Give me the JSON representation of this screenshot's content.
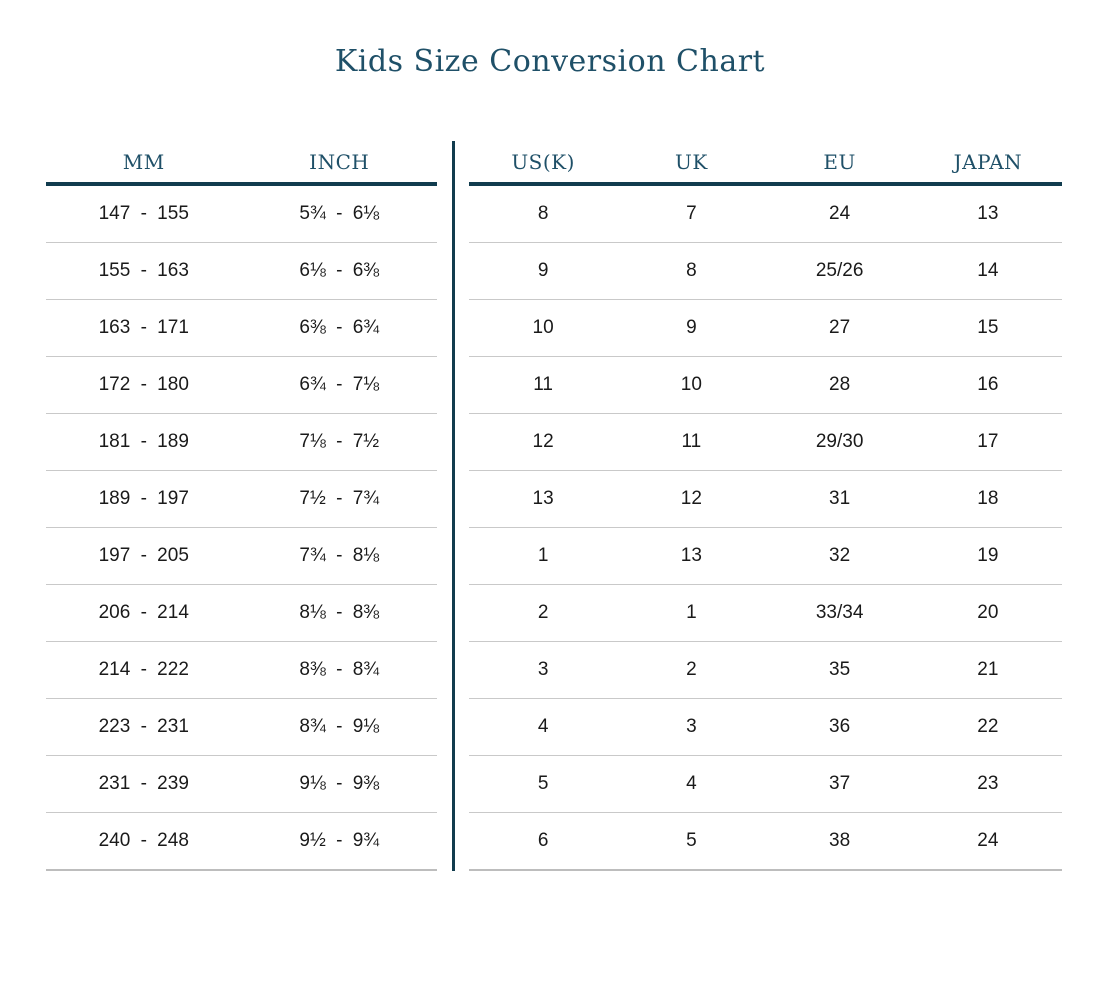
{
  "page": {
    "title": "Kids Size Conversion Chart"
  },
  "colors": {
    "accent_teal": "#1f5068",
    "rule_dark": "#113c4e",
    "row_line_gray": "#c9c9c9",
    "data_text": "#1a1a1a",
    "background": "#ffffff"
  },
  "left_table": {
    "headers": [
      "MM",
      "INCH"
    ],
    "rows": [
      [
        "147 - 155",
        "5¾ - 6⅛"
      ],
      [
        "155 - 163",
        "6⅛ - 6⅜"
      ],
      [
        "163 - 171",
        "6⅜ - 6¾"
      ],
      [
        "172 - 180",
        "6¾ - 7⅛"
      ],
      [
        "181 - 189",
        "7⅛ - 7½"
      ],
      [
        "189 - 197",
        "7½ - 7¾"
      ],
      [
        "197 - 205",
        "7¾ - 8⅛"
      ],
      [
        "206 - 214",
        "8⅛ - 8⅜"
      ],
      [
        "214 - 222",
        "8⅜ - 8¾"
      ],
      [
        "223 - 231",
        "8¾ - 9⅛"
      ],
      [
        "231 - 239",
        "9⅛ - 9⅜"
      ],
      [
        "240 - 248",
        "9½ - 9¾"
      ]
    ]
  },
  "right_table": {
    "headers": [
      "US(K)",
      "UK",
      "EU",
      "JAPAN"
    ],
    "rows": [
      [
        "8",
        "7",
        "24",
        "13"
      ],
      [
        "9",
        "8",
        "25/26",
        "14"
      ],
      [
        "10",
        "9",
        "27",
        "15"
      ],
      [
        "11",
        "10",
        "28",
        "16"
      ],
      [
        "12",
        "11",
        "29/30",
        "17"
      ],
      [
        "13",
        "12",
        "31",
        "18"
      ],
      [
        "1",
        "13",
        "32",
        "19"
      ],
      [
        "2",
        "1",
        "33/34",
        "20"
      ],
      [
        "3",
        "2",
        "35",
        "21"
      ],
      [
        "4",
        "3",
        "36",
        "22"
      ],
      [
        "5",
        "4",
        "37",
        "23"
      ],
      [
        "6",
        "5",
        "38",
        "24"
      ]
    ]
  },
  "chart_data": {
    "type": "table",
    "title": "Kids Size Conversion Chart",
    "columns": [
      "MM",
      "INCH",
      "US(K)",
      "UK",
      "EU",
      "JAPAN"
    ],
    "rows": [
      [
        "147 - 155",
        "5¾ - 6⅛",
        "8",
        "7",
        "24",
        "13"
      ],
      [
        "155 - 163",
        "6⅛ - 6⅜",
        "9",
        "8",
        "25/26",
        "14"
      ],
      [
        "163 - 171",
        "6⅜ - 6¾",
        "10",
        "9",
        "27",
        "15"
      ],
      [
        "172 - 180",
        "6¾ - 7⅛",
        "11",
        "10",
        "28",
        "16"
      ],
      [
        "181 - 189",
        "7⅛ - 7½",
        "12",
        "11",
        "29/30",
        "17"
      ],
      [
        "189 - 197",
        "7½ - 7¾",
        "13",
        "12",
        "31",
        "18"
      ],
      [
        "197 - 205",
        "7¾ - 8⅛",
        "1",
        "13",
        "32",
        "19"
      ],
      [
        "206 - 214",
        "8⅛ - 8⅜",
        "2",
        "1",
        "33/34",
        "20"
      ],
      [
        "214 - 222",
        "8⅜ - 8¾",
        "3",
        "2",
        "35",
        "21"
      ],
      [
        "223 - 231",
        "8¾ - 9⅛",
        "4",
        "3",
        "36",
        "22"
      ],
      [
        "231 - 239",
        "9⅛ - 9⅜",
        "5",
        "4",
        "37",
        "23"
      ],
      [
        "240 - 248",
        "9½ - 9¾",
        "6",
        "5",
        "38",
        "24"
      ]
    ],
    "layout": {
      "two_panels": [
        "MM/INCH",
        "US(K)/UK/EU/JAPAN"
      ],
      "panel_separator": "vertical dark-teal rule",
      "header_rule": "thick dark-teal underline",
      "row_rules": "thin light-gray lines"
    }
  }
}
